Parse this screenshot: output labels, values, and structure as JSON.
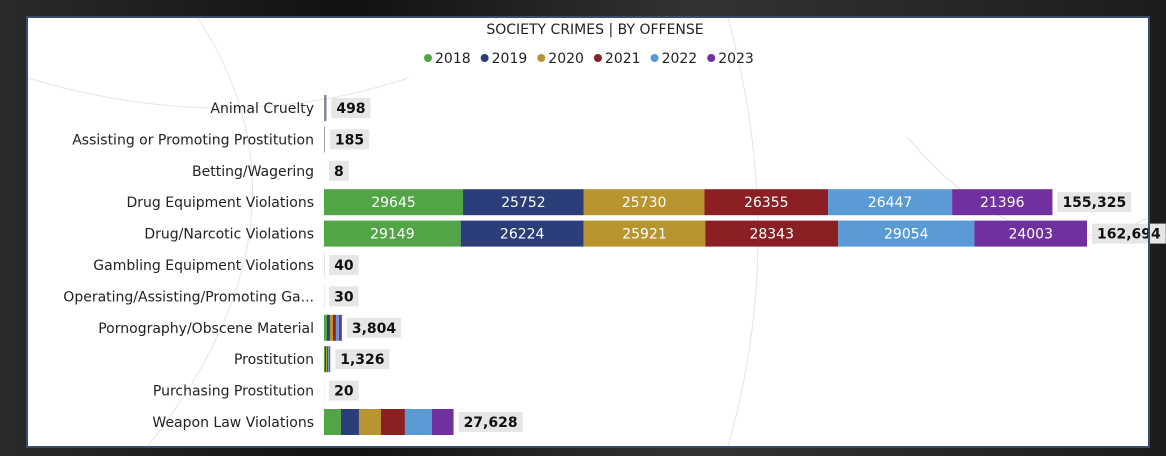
{
  "chart_data": {
    "type": "stacked-bar-horizontal",
    "title": "SOCIETY CRIMES | BY OFFENSE",
    "categories": [
      "Animal Cruelty",
      "Assisting or Promoting Prostitution",
      "Betting/Wagering",
      "Drug Equipment Violations",
      "Drug/Narcotic Violations",
      "Gambling Equipment Violations",
      "Operating/Assisting/Promoting Ga...",
      "Pornography/Obscene Material",
      "Prostitution",
      "Purchasing Prostitution",
      "Weapon Law Violations"
    ],
    "series": [
      {
        "name": "2018",
        "color": "#52a447",
        "values": [
          80,
          30,
          1,
          29645,
          29149,
          6,
          5,
          630,
          220,
          3,
          3620
        ]
      },
      {
        "name": "2019",
        "color": "#2c3e7a",
        "values": [
          85,
          31,
          1,
          25752,
          26224,
          7,
          5,
          640,
          225,
          3,
          3835
        ]
      },
      {
        "name": "2020",
        "color": "#b8952f",
        "values": [
          80,
          31,
          2,
          25730,
          25921,
          7,
          5,
          630,
          220,
          4,
          4690
        ]
      },
      {
        "name": "2021",
        "color": "#8b1f24",
        "values": [
          85,
          31,
          1,
          26355,
          28343,
          7,
          5,
          640,
          225,
          3,
          5110
        ]
      },
      {
        "name": "2022",
        "color": "#5b9bd5",
        "values": [
          84,
          31,
          2,
          26447,
          29054,
          6,
          5,
          630,
          218,
          4,
          5750
        ]
      },
      {
        "name": "2023",
        "color": "#7030a0",
        "values": [
          84,
          31,
          1,
          21396,
          24003,
          7,
          5,
          634,
          218,
          3,
          4623
        ]
      }
    ],
    "totals": [
      498,
      185,
      8,
      155325,
      162694,
      40,
      30,
      3804,
      1326,
      20,
      27628
    ],
    "total_labels": [
      "498",
      "185",
      "8",
      "155,325",
      "162,694",
      "40",
      "30",
      "3,804",
      "1,326",
      "20",
      "27,628"
    ]
  }
}
